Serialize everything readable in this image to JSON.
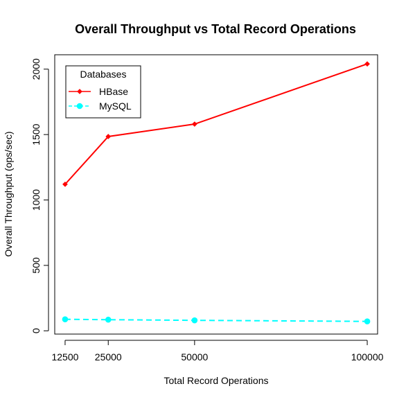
{
  "chart_data": {
    "type": "line",
    "title": "Overall Throughput vs Total Record Operations",
    "xlabel": "Total Record Operations",
    "ylabel": "Overall Throughput (ops/sec)",
    "x": [
      12500,
      25000,
      50000,
      100000
    ],
    "x_tick_labels": [
      "12500",
      "25000",
      "50000",
      "100000"
    ],
    "y_ticks": [
      0,
      500,
      1000,
      1500,
      2000
    ],
    "y_tick_labels": [
      "0",
      "500",
      "1000",
      "1500",
      "2000"
    ],
    "xlim": [
      9500,
      103000
    ],
    "ylim": [
      -25,
      2110
    ],
    "grid": false,
    "legend": {
      "title": "Databases",
      "placement": "top-left"
    },
    "series": [
      {
        "name": "HBase",
        "values": [
          1120,
          1485,
          1580,
          2040
        ],
        "color": "#ff0000",
        "line_style": "solid",
        "marker": "diamond"
      },
      {
        "name": "MySQL",
        "values": [
          88,
          85,
          80,
          72
        ],
        "color": "#00ffff",
        "line_style": "dashed",
        "marker": "circle"
      }
    ]
  }
}
